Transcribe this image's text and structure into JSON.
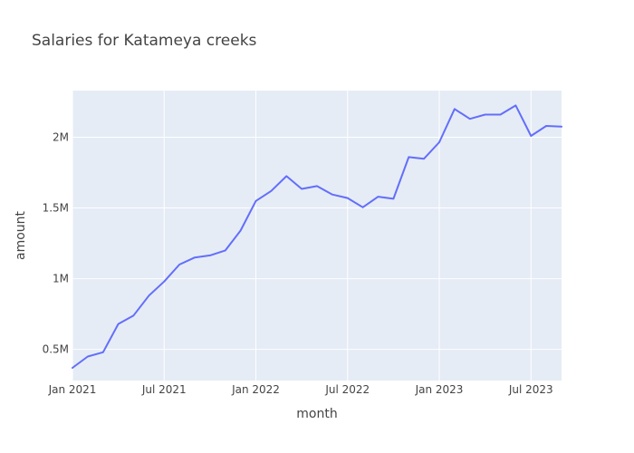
{
  "chart_data": {
    "type": "line",
    "title": "Salaries for Katameya creeks",
    "xlabel": "month",
    "ylabel": "amount",
    "x_ticks": [
      {
        "label": "Jan 2021",
        "month": 0
      },
      {
        "label": "Jul 2021",
        "month": 6
      },
      {
        "label": "Jan 2022",
        "month": 12
      },
      {
        "label": "Jul 2022",
        "month": 18
      },
      {
        "label": "Jan 2023",
        "month": 24
      },
      {
        "label": "Jul 2023",
        "month": 30
      }
    ],
    "y_ticks": [
      {
        "label": "0.5M",
        "value": 500000
      },
      {
        "label": "1M",
        "value": 1000000
      },
      {
        "label": "1.5M",
        "value": 1500000
      },
      {
        "label": "2M",
        "value": 2000000
      }
    ],
    "xlim": [
      "2021-01",
      "2023-09"
    ],
    "ylim": [
      280000,
      2330000
    ],
    "grid": true,
    "line_color": "#636efa",
    "plot_bg": "#e5ecf6",
    "points": [
      {
        "x": "2021-01",
        "y": 370000
      },
      {
        "x": "2021-02",
        "y": 450000
      },
      {
        "x": "2021-03",
        "y": 480000
      },
      {
        "x": "2021-04",
        "y": 680000
      },
      {
        "x": "2021-05",
        "y": 740000
      },
      {
        "x": "2021-06",
        "y": 880000
      },
      {
        "x": "2021-07",
        "y": 980000
      },
      {
        "x": "2021-08",
        "y": 1100000
      },
      {
        "x": "2021-09",
        "y": 1150000
      },
      {
        "x": "2021-10",
        "y": 1165000
      },
      {
        "x": "2021-11",
        "y": 1200000
      },
      {
        "x": "2021-12",
        "y": 1340000
      },
      {
        "x": "2022-01",
        "y": 1550000
      },
      {
        "x": "2022-02",
        "y": 1620000
      },
      {
        "x": "2022-03",
        "y": 1725000
      },
      {
        "x": "2022-04",
        "y": 1635000
      },
      {
        "x": "2022-05",
        "y": 1655000
      },
      {
        "x": "2022-06",
        "y": 1595000
      },
      {
        "x": "2022-07",
        "y": 1570000
      },
      {
        "x": "2022-08",
        "y": 1505000
      },
      {
        "x": "2022-09",
        "y": 1580000
      },
      {
        "x": "2022-10",
        "y": 1565000
      },
      {
        "x": "2022-11",
        "y": 1860000
      },
      {
        "x": "2022-12",
        "y": 1848000
      },
      {
        "x": "2023-01",
        "y": 1965000
      },
      {
        "x": "2023-02",
        "y": 2200000
      },
      {
        "x": "2023-03",
        "y": 2130000
      },
      {
        "x": "2023-04",
        "y": 2160000
      },
      {
        "x": "2023-05",
        "y": 2160000
      },
      {
        "x": "2023-06",
        "y": 2225000
      },
      {
        "x": "2023-07",
        "y": 2010000
      },
      {
        "x": "2023-08",
        "y": 2080000
      },
      {
        "x": "2023-09",
        "y": 2075000
      }
    ]
  }
}
